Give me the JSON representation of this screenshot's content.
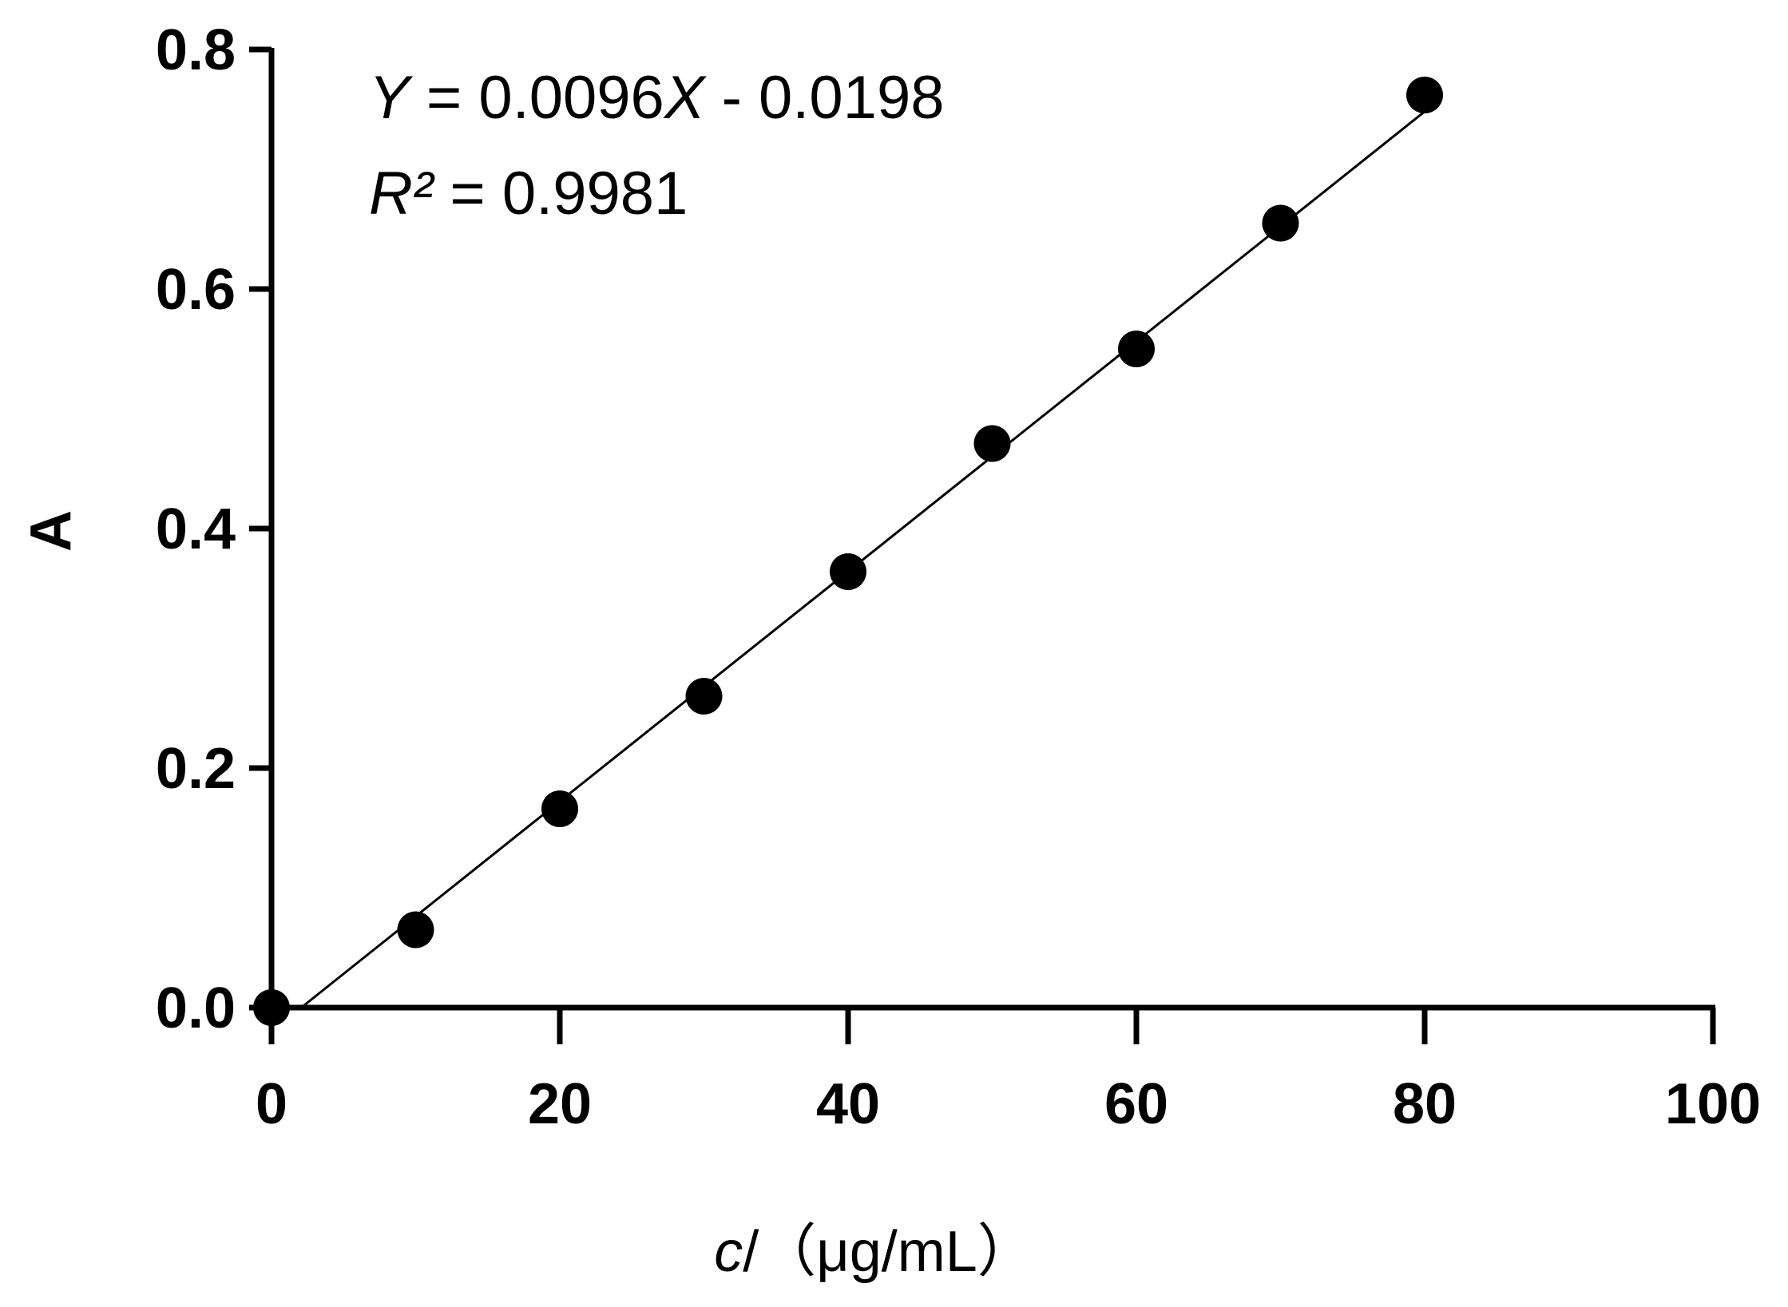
{
  "chart_data": {
    "type": "scatter",
    "x": [
      0,
      10,
      20,
      30,
      40,
      50,
      60,
      70,
      80
    ],
    "y": [
      0.0,
      0.065,
      0.166,
      0.26,
      0.364,
      0.471,
      0.55,
      0.655,
      0.762
    ],
    "xlim": [
      0,
      100
    ],
    "ylim": [
      0,
      0.8
    ],
    "x_ticks": [
      "0",
      "20",
      "40",
      "60",
      "80",
      "100"
    ],
    "y_ticks": [
      "0.0",
      "0.2",
      "0.4",
      "0.6",
      "0.8"
    ],
    "xlabel": {
      "variable": "c",
      "unit": "/（μg/mL）"
    },
    "ylabel": "A",
    "fit_line": {
      "slope": 0.0096,
      "intercept": -0.0198,
      "x_range": [
        2.0625,
        80
      ]
    },
    "annotations": {
      "equation_var": "Y",
      "equation_mid": " = 0.0096",
      "equation_var2": "X",
      "equation_end": " - 0.0198",
      "r2_var": "R²",
      "r2_value": " = 0.9981"
    },
    "grid": false,
    "legend": "none",
    "colors": {
      "marker": "#000000",
      "line": "#000000",
      "axis": "#000000"
    }
  }
}
